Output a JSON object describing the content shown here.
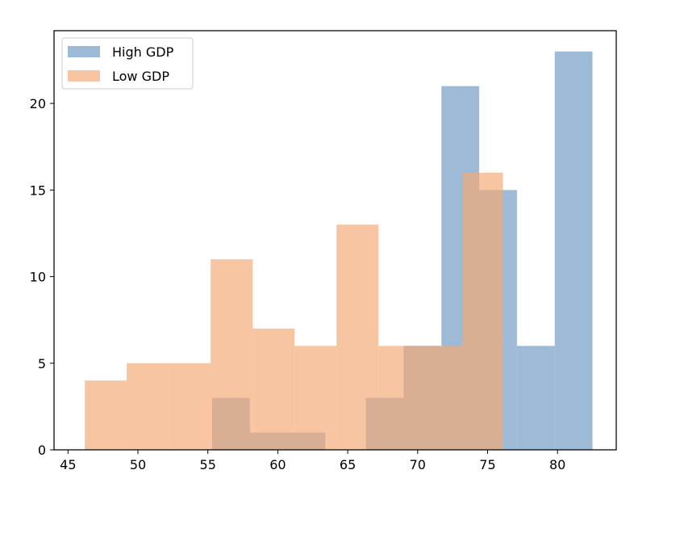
{
  "chart_data": {
    "type": "histogram",
    "xlim": [
      44,
      84.2
    ],
    "ylim": [
      0,
      24.2
    ],
    "x_ticks": [
      45,
      50,
      55,
      60,
      65,
      70,
      75,
      80
    ],
    "y_ticks": [
      0,
      5,
      10,
      15,
      20
    ],
    "legend_position": "top-left",
    "grid": false,
    "series": [
      {
        "name": "High GDP",
        "color": "#6f9ac4",
        "opacity": 0.68,
        "bins": [
          {
            "x0": 55.3,
            "x1": 58.0,
            "count": 3
          },
          {
            "x0": 58.0,
            "x1": 60.7,
            "count": 1
          },
          {
            "x0": 60.7,
            "x1": 63.4,
            "count": 1
          },
          {
            "x0": 66.3,
            "x1": 69.0,
            "count": 3
          },
          {
            "x0": 69.0,
            "x1": 71.7,
            "count": 6
          },
          {
            "x0": 71.7,
            "x1": 74.4,
            "count": 21
          },
          {
            "x0": 74.4,
            "x1": 77.1,
            "count": 15
          },
          {
            "x0": 77.1,
            "x1": 79.8,
            "count": 6
          },
          {
            "x0": 79.8,
            "x1": 82.5,
            "count": 23
          }
        ]
      },
      {
        "name": "Low GDP",
        "color": "#f4aa76",
        "opacity": 0.68,
        "bins": [
          {
            "x0": 46.2,
            "x1": 49.2,
            "count": 4
          },
          {
            "x0": 49.2,
            "x1": 52.2,
            "count": 5
          },
          {
            "x0": 52.2,
            "x1": 55.2,
            "count": 5
          },
          {
            "x0": 55.2,
            "x1": 58.2,
            "count": 11
          },
          {
            "x0": 58.2,
            "x1": 61.2,
            "count": 7
          },
          {
            "x0": 61.2,
            "x1": 64.2,
            "count": 6
          },
          {
            "x0": 64.2,
            "x1": 67.2,
            "count": 13
          },
          {
            "x0": 67.2,
            "x1": 70.2,
            "count": 6
          },
          {
            "x0": 70.2,
            "x1": 73.2,
            "count": 6
          },
          {
            "x0": 73.2,
            "x1": 74.6,
            "count": 16
          },
          {
            "x0": 74.6,
            "x1": 76.1,
            "count": 16
          }
        ]
      }
    ]
  }
}
